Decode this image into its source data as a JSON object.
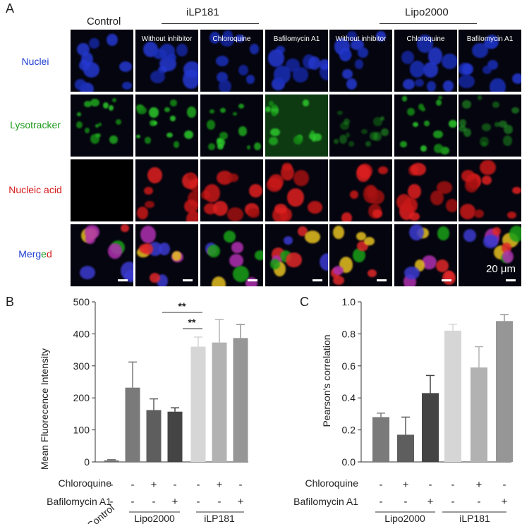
{
  "panel_a": {
    "letter": "A",
    "control_label": "Control",
    "group_ilp": "iLP181",
    "group_lipo": "Lipo2000",
    "column_titles": [
      "",
      "Without inhibitor",
      "Chloroquine",
      "Bafilomycin A1",
      "Without inhibitor",
      "Chloroquine",
      "Bafilomycin A1"
    ],
    "row_labels": [
      "Nuclei",
      "Lysotracker",
      "Nucleic acid"
    ],
    "merged_parts": [
      "Merg",
      "e",
      "d"
    ],
    "scale_label": "20 μm",
    "colors": {
      "nuclei": "#1f3fd0",
      "lyso": "#1c9a1c",
      "nucleic": "#d41a1a",
      "merged_blue": "#1f3fd0",
      "merged_green": "#1c9a1c",
      "merged_red": "#d41a1a"
    }
  },
  "panel_b": {
    "letter": "B",
    "ylabel": "Mean Fluorecence Intensity",
    "yticks": [
      "0",
      "100",
      "200",
      "300",
      "400",
      "500"
    ],
    "row_chloroquine": "Chloroquine",
    "row_bafilomycin": "Bafilomycin A1",
    "chloroquine_signs": [
      "-",
      "-",
      "+",
      "-",
      "-",
      "+",
      "-"
    ],
    "bafilomycin_signs": [
      "-",
      "-",
      "-",
      "+",
      "-",
      "-",
      "+"
    ],
    "control_label": "Control",
    "group_lipo": "Lipo2000",
    "group_ilp": "iLP181",
    "sig1": "**",
    "sig2": "**"
  },
  "panel_c": {
    "letter": "C",
    "ylabel": "Pearson's correlation",
    "yticks": [
      "0.0",
      "0.2",
      "0.4",
      "0.6",
      "0.8",
      "1.0"
    ],
    "row_chloroquine": "Chloroquine",
    "row_bafilomycin": "Bafilomycin A1",
    "chloroquine_signs": [
      "-",
      "+",
      "-",
      "-",
      "+",
      "-"
    ],
    "bafilomycin_signs": [
      "-",
      "-",
      "+",
      "-",
      "-",
      "+"
    ],
    "group_lipo": "Lipo2000",
    "group_ilp": "iLP181"
  },
  "chart_data": [
    {
      "type": "bar",
      "title": "",
      "xlabel": "",
      "ylabel": "Mean Fluorecence Intensity",
      "ylim": [
        0,
        500
      ],
      "categories": [
        "Control",
        "Lipo2000",
        "Lipo2000 + Chloroquine",
        "Lipo2000 + Bafilomycin A1",
        "iLP181",
        "iLP181 + Chloroquine",
        "iLP181 + Bafilomycin A1"
      ],
      "values": [
        5,
        232,
        162,
        157,
        360,
        373,
        387
      ],
      "errors": [
        2,
        80,
        35,
        12,
        30,
        72,
        42
      ],
      "colors": [
        "#6e6e6e",
        "#7a7a7a",
        "#5e5e5e",
        "#444444",
        "#d6d6d6",
        "#b2b2b2",
        "#969696"
      ]
    },
    {
      "type": "bar",
      "title": "",
      "xlabel": "",
      "ylabel": "Pearson's correlation",
      "ylim": [
        0,
        1.0
      ],
      "categories": [
        "Lipo2000",
        "Lipo2000 + Chloroquine",
        "Lipo2000 + Bafilomycin A1",
        "iLP181",
        "iLP181 + Chloroquine",
        "iLP181 + Bafilomycin A1"
      ],
      "values": [
        0.28,
        0.17,
        0.43,
        0.82,
        0.59,
        0.88
      ],
      "errors": [
        0.025,
        0.11,
        0.11,
        0.04,
        0.13,
        0.04
      ],
      "colors": [
        "#7a7a7a",
        "#5e5e5e",
        "#444444",
        "#d6d6d6",
        "#b2b2b2",
        "#969696"
      ]
    }
  ]
}
